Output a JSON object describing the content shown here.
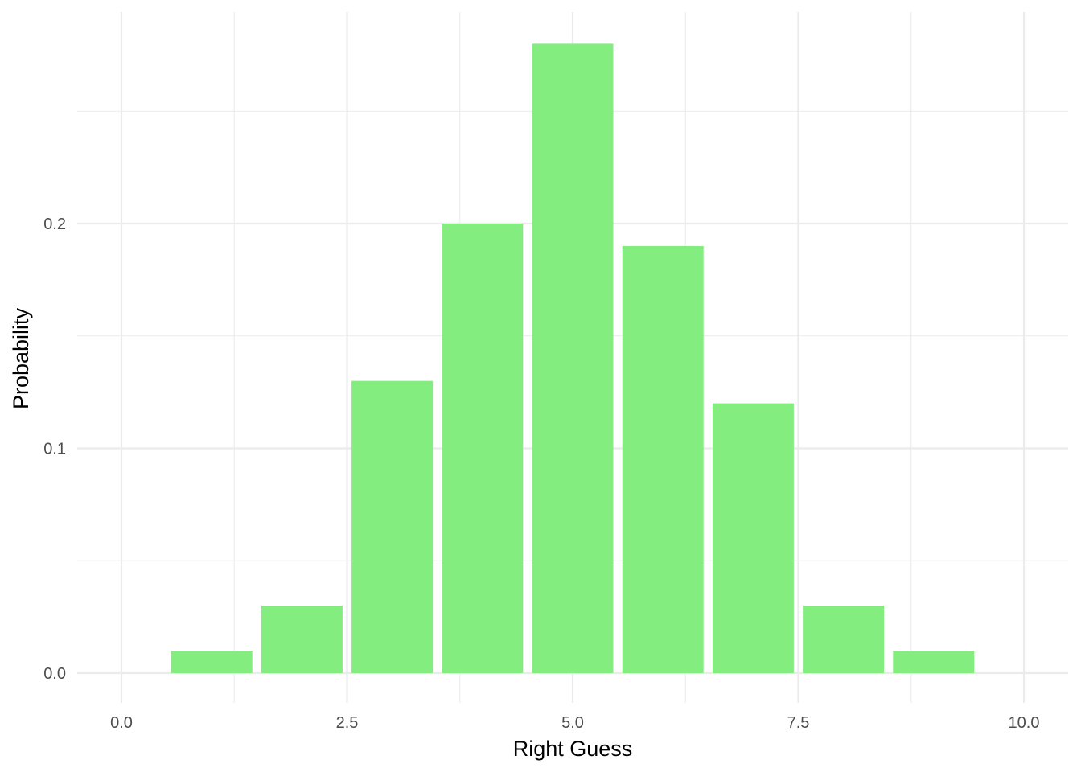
{
  "chart_data": {
    "type": "bar",
    "x": [
      1,
      2,
      3,
      4,
      5,
      6,
      7,
      8,
      9
    ],
    "values": [
      0.01,
      0.03,
      0.13,
      0.2,
      0.28,
      0.19,
      0.12,
      0.03,
      0.01
    ],
    "xlabel": "Right Guess",
    "ylabel": "Probability",
    "xlim": [
      0,
      10
    ],
    "ylim": [
      0,
      0.28
    ],
    "x_ticks": [
      {
        "value": 0,
        "label": "0.0"
      },
      {
        "value": 2.5,
        "label": "2.5"
      },
      {
        "value": 5,
        "label": "5.0"
      },
      {
        "value": 7.5,
        "label": "7.5"
      },
      {
        "value": 10,
        "label": "10.0"
      }
    ],
    "y_ticks": [
      {
        "value": 0,
        "label": "0.0"
      },
      {
        "value": 0.1,
        "label": "0.1"
      },
      {
        "value": 0.2,
        "label": "0.2"
      }
    ],
    "bar_color": "#83ed7f",
    "grid": true,
    "legend": "none"
  }
}
